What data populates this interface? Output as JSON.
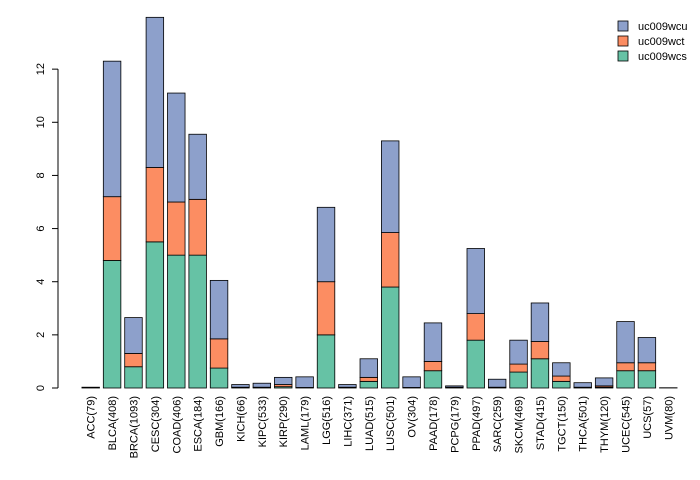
{
  "chart_data": {
    "type": "bar",
    "stacked": true,
    "title": "",
    "xlabel": "",
    "ylabel": "",
    "ylim": [
      0,
      14
    ],
    "yticks": [
      0,
      2,
      4,
      6,
      8,
      10,
      12
    ],
    "ytick_labels": [
      "0",
      "2",
      "4",
      "6",
      "8",
      "10",
      "12"
    ],
    "legend_position": "top-right",
    "categories": [
      "ACC(79)",
      "BLCA(408)",
      "BRCA(1093)",
      "CESC(304)",
      "COAD(406)",
      "ESCA(184)",
      "GBM(166)",
      "KICH(66)",
      "KIPC(533)",
      "KIRP(290)",
      "LAML(179)",
      "LGG(516)",
      "LIHC(371)",
      "LUAD(515)",
      "LUSC(501)",
      "OV(304)",
      "PAAD(178)",
      "PCPG(179)",
      "PPAD(497)",
      "SARC(259)",
      "SKCM(469)",
      "STAD(415)",
      "TGCT(150)",
      "THCA(501)",
      "THYM(120)",
      "UCEC(545)",
      "UCS(57)",
      "UVM(80)"
    ],
    "series": [
      {
        "name": "uc009wcs",
        "color": "#66c2a5",
        "values": [
          0.03,
          4.8,
          0.8,
          5.5,
          5.0,
          5.0,
          0.75,
          0.03,
          0.03,
          0.05,
          0.02,
          2.0,
          0.03,
          0.25,
          3.8,
          0.02,
          0.65,
          0.03,
          1.8,
          0.03,
          0.6,
          1.1,
          0.25,
          0.03,
          0.03,
          0.65,
          0.65,
          0.01
        ]
      },
      {
        "name": "uc009wct",
        "color": "#fc8d62",
        "values": [
          0.0,
          2.4,
          0.5,
          2.8,
          2.0,
          2.1,
          1.1,
          0.0,
          0.0,
          0.08,
          0.0,
          2.0,
          0.0,
          0.15,
          2.05,
          0.0,
          0.35,
          0.0,
          1.0,
          0.0,
          0.3,
          0.65,
          0.2,
          0.0,
          0.05,
          0.3,
          0.3,
          0.0
        ]
      },
      {
        "name": "uc009wcu",
        "color": "#8da0cb",
        "values": [
          0.0,
          5.1,
          1.35,
          5.65,
          4.1,
          2.45,
          2.2,
          0.1,
          0.15,
          0.27,
          0.4,
          2.8,
          0.1,
          0.7,
          3.45,
          0.4,
          1.45,
          0.05,
          2.45,
          0.3,
          0.9,
          1.45,
          0.5,
          0.17,
          0.3,
          1.55,
          0.95,
          0.0
        ]
      }
    ]
  }
}
